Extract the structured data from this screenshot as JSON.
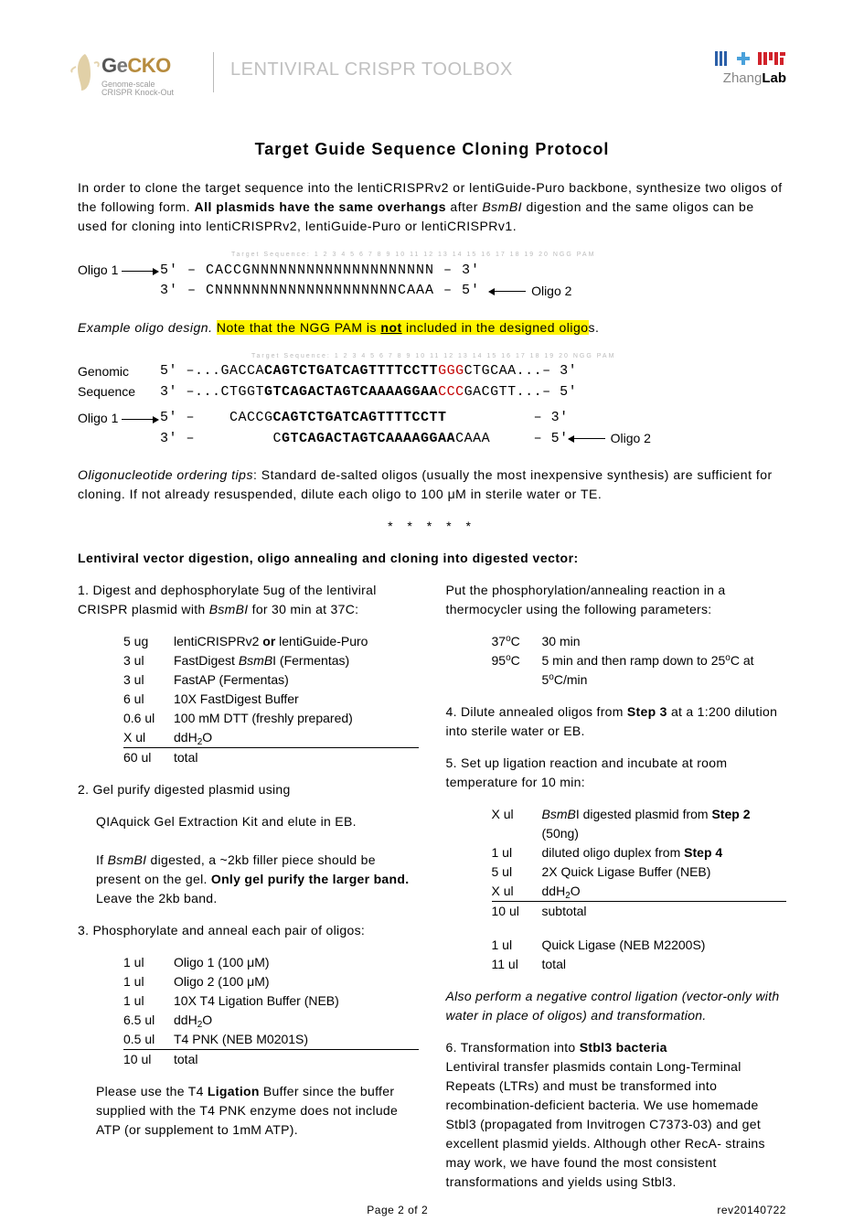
{
  "header": {
    "gecko": {
      "g": "G",
      "e": "e",
      "cko": "CKO",
      "sub1": "Genome-scale",
      "sub2": "CRISPR Knock-Out"
    },
    "toolbox": "LENTIVIRAL CRISPR TOOLBOX",
    "zhang": "Zhang",
    "lab": "Lab"
  },
  "title": "Target Guide Sequence Cloning Protocol",
  "intro1": "In order to clone the target sequence into the lentiCRISPRv2 or lentiGuide-Puro backbone, synthesize two oligos of the following form. ",
  "intro_bold": "All plasmids have the same overhangs",
  "intro2": " after ",
  "intro2b": " digestion and the same oligos can be used for cloning into lentiCRISPRv2, lentiGuide-Puro or lentiCRISPRv1.",
  "bsmbi": "BsmBI",
  "seq1": {
    "tiny": "Target Sequence:  1  2  3  4  5  6  7  8  9 10 11 12 13 14 15 16 17 18 19 20    NGG PAM",
    "oligo1_lbl": "Oligo 1",
    "oligo2_lbl": "Oligo 2",
    "row1": "5' – CACCGNNNNNNNNNNNNNNNNNNNN      – 3'",
    "row2": "3' –      CNNNNNNNNNNNNNNNNNNNNCAAA – 5'"
  },
  "example_lead": "Example oligo design.",
  "hl_text": " Note that the NGG PAM is not included in the designed oligos.",
  "hl_pre": " Note that the ",
  "hl_ngg": "NGG",
  "hl_mid": " PAM is ",
  "hl_not": "not",
  "hl_post": " included in the designed oligo",
  "hl_tail": "s.",
  "seq2": {
    "tiny": "Target Sequence:  1  2  3  4  5  6  7  8  9 10 11 12 13 14 15 16 17 18 19 20  NGG PAM",
    "genomic": "Genomic",
    "sequence": "Sequence",
    "r1_a": "5' –...GACCA",
    "r1_b": "CAGTCTGATCAGTTTTCCTT",
    "r1_c": "GGG",
    "r1_d": "CTGCAA...– 3'",
    "r2_a": "3' –...CTGGT",
    "r2_b": "GTCAGACTAGTCAAAAGGAA",
    "r2_c": "CCC",
    "r2_d": "GACGTT...– 5'",
    "r3_a": "5' –    CACCG",
    "r3_b": "CAGTCTGATCAGTTTTCCTT",
    "r3_c": "          – 3'",
    "r4_a": "3' –         C",
    "r4_b": "GTCAGACTAGTCAAAAGGAA",
    "r4_c": "CAAA     – 5'"
  },
  "tips_lead": "Oligonucleotide ordering tips",
  "tips_text": ": Standard de-salted oligos (usually the most inexpensive synthesis) are sufficient for cloning. If not already resuspended, dilute each oligo to 100 μM in sterile water or TE.",
  "stars": "* * * * *",
  "sec_head": "Lentiviral vector digestion, oligo annealing and cloning into digested vector:",
  "left": {
    "s1a": "1.  Digest and dephosphorylate 5ug of the lentiviral CRISPR plasmid with ",
    "s1b": " for 30 min at 37C:",
    "t1": [
      [
        "5 ug",
        "lentiCRISPRv2 <or> lentiGuide-Puro"
      ],
      [
        "3 ul",
        "FastDigest <i>BsmB</i>I (Fermentas)"
      ],
      [
        "3 ul",
        "FastAP (Fermentas)"
      ],
      [
        "6 ul",
        "10X FastDigest Buffer"
      ],
      [
        "0.6 ul",
        "100 mM DTT (freshly prepared)"
      ],
      [
        "X ul",
        "ddH2O"
      ],
      [
        "60 ul",
        "total"
      ]
    ],
    "s2a": "2.  Gel purify digested plasmid using",
    "s2b": "QIAquick Gel Extraction Kit and elute in EB.",
    "s2c_a": "If ",
    "s2c_b": " digested, a ~2kb filler piece should be present on the gel. ",
    "s2c_c": "Only gel purify the larger band.",
    "s2c_d": " Leave the 2kb band.",
    "s3": "3. Phosphorylate and anneal each pair of oligos:",
    "t3": [
      [
        "1 ul",
        "Oligo 1 (100 μM)"
      ],
      [
        "1 ul",
        "Oligo 2 (100 μM)"
      ],
      [
        "1 ul",
        "10X T4 Ligation Buffer (NEB)"
      ],
      [
        "6.5 ul",
        "ddH2O"
      ],
      [
        "0.5 ul",
        "T4 PNK (NEB M0201S)"
      ],
      [
        "10 ul",
        "total"
      ]
    ],
    "s3n_a": "Please use the T4 ",
    "s3n_b": "Ligation",
    "s3n_c": " Buffer since the buffer supplied with the T4 PNK enzyme does not include ATP (or supplement to 1mM ATP)."
  },
  "right": {
    "therm_lead": "Put the phosphorylation/annealing reaction in a thermocycler using the following parameters:",
    "therm": [
      [
        "37°C",
        "30 min"
      ],
      [
        "95°C",
        "5 min and then ramp down to 25°C at 5°C/min"
      ]
    ],
    "s4_a": "4.  Dilute annealed oligos from ",
    "s4_b": "Step 3",
    "s4_c": " at a 1:200 dilution into sterile water or EB.",
    "s5": "5. Set up ligation reaction and incubate at room temperature for 10 min:",
    "t5_1": [
      [
        "X ul",
        "<i>BsmB</i>I digested plasmid from <b>Step 2</b> (50ng)"
      ],
      [
        "1 ul",
        "diluted oligo duplex from <b>Step 4</b>"
      ],
      [
        "5 ul",
        "2X Quick Ligase Buffer (NEB)"
      ],
      [
        "X ul",
        "ddH2O"
      ],
      [
        "10 ul",
        "subtotal"
      ]
    ],
    "t5_2": [
      [
        "1 ul",
        "Quick Ligase (NEB M2200S)"
      ],
      [
        "11 ul",
        "total"
      ]
    ],
    "neg": "Also perform a negative control ligation (vector-only with water in place of oligos) and transformation.",
    "s6_a": "6. Transformation into ",
    "s6_b": "Stbl3 bacteria",
    "s6_c": "Lentiviral transfer plasmids contain Long-Terminal Repeats (LTRs) and must be transformed into recombination-deficient bacteria. We use homemade Stbl3 (propagated from Invitrogen C7373-03) and get excellent plasmid yields. Although other RecA- strains may work, we have found the most consistent transformations and yields using Stbl3."
  },
  "footer": {
    "center": "Page 2 of 2",
    "right": "rev20140722"
  },
  "colors": {
    "highlight": "#fff400",
    "red": "#c30000",
    "gray": "#c0c0c0",
    "gecko_gold": "#b78c3f",
    "mit_blue": "#2b5fa8",
    "mit_lblue": "#4aa1db",
    "mit_red": "#d1222a"
  }
}
